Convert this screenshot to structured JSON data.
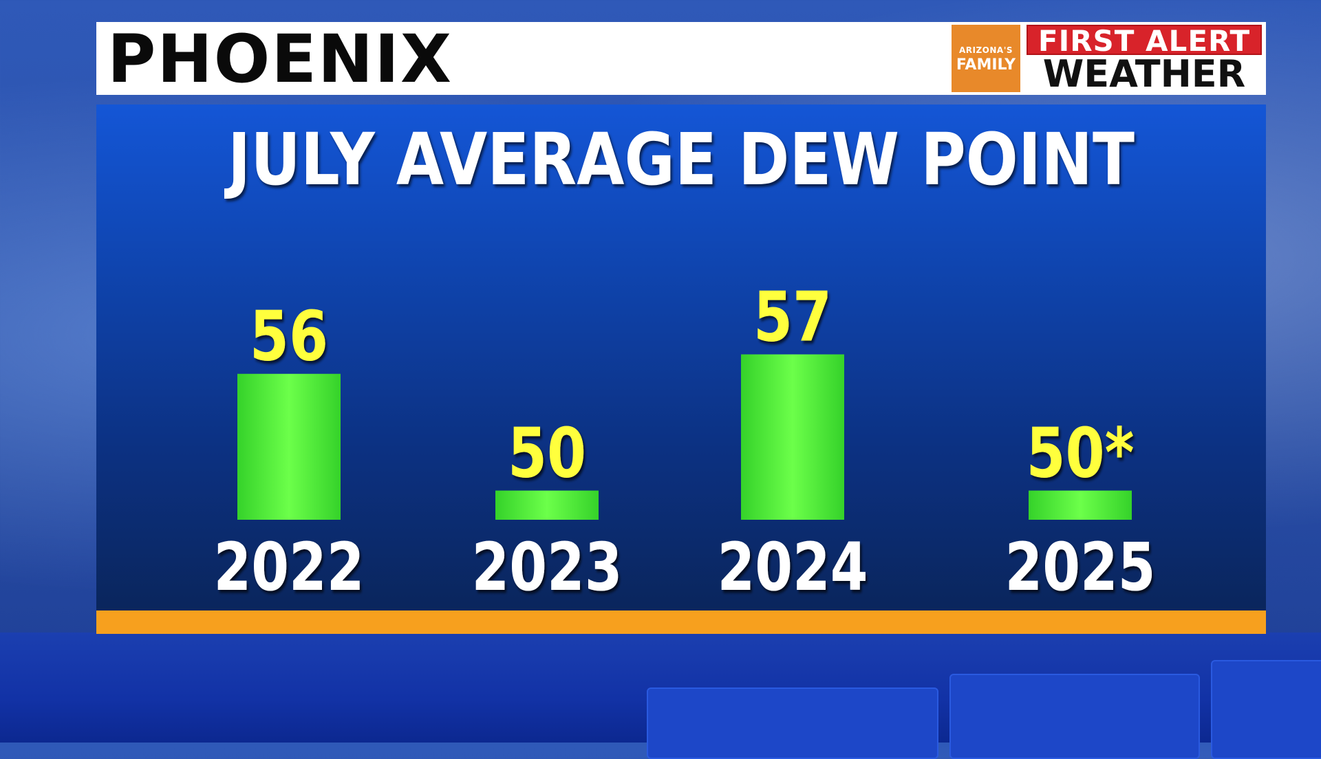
{
  "header": {
    "city": "PHOENIX",
    "logo_small_line1": "ARIZONA'S",
    "logo_small_line2": "FAMILY",
    "logo_top": "FIRST ALERT",
    "logo_bottom": "WEATHER"
  },
  "colors": {
    "bar": "#35d22a",
    "bar_highlight": "#6cff4a",
    "value_label": "#ffff3c",
    "year_label": "#ffffff",
    "accent_stripe": "#f7a01e"
  },
  "chart_data": {
    "type": "bar",
    "title": "JULY AVERAGE DEW POINT",
    "categories": [
      "2022",
      "2023",
      "2024",
      "2025"
    ],
    "values": [
      56,
      50,
      57,
      50
    ],
    "value_labels": [
      "56",
      "50",
      "57",
      "50*"
    ],
    "xlabel": "",
    "ylabel": "",
    "ylim": [
      48.5,
      57.5
    ],
    "grid": false,
    "legend": "none"
  }
}
